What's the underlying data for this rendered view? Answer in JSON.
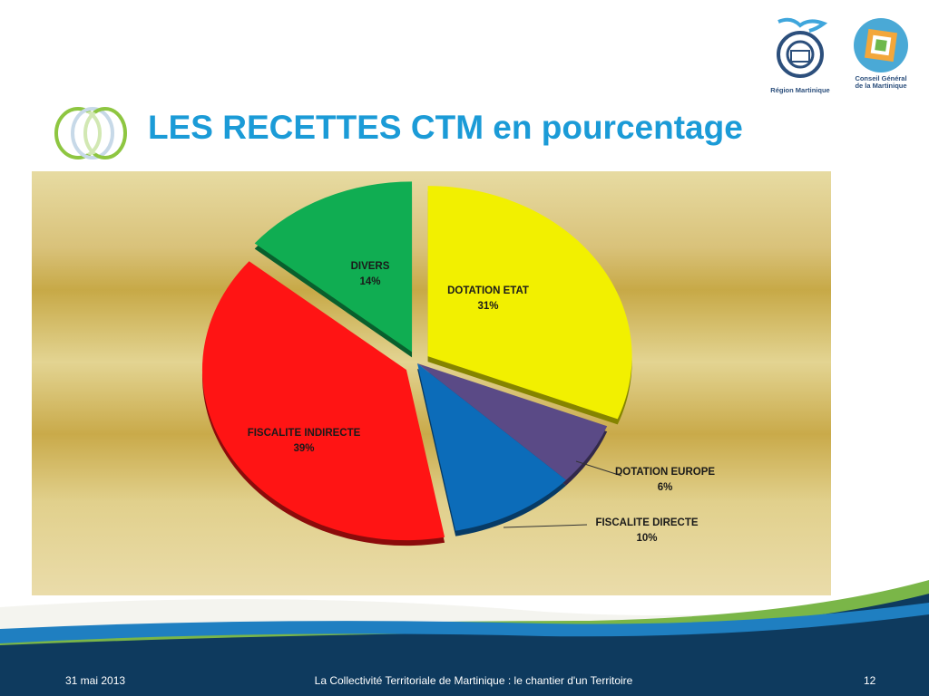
{
  "slide": {
    "title": "LES RECETTES CTM en pourcentage",
    "footer": {
      "date": "31 mai 2013",
      "caption": "La Collectivité Territoriale de Martinique : le chantier d'un Territoire",
      "page_number": "12"
    }
  },
  "logos": {
    "region_label": "Région Martinique",
    "cg_label_line1": "Conseil Général",
    "cg_label_line2": "de la Martinique"
  },
  "chart_data": {
    "type": "pie",
    "title": "",
    "slices": [
      {
        "label": "DOTATION ETAT",
        "percent_label": "31%",
        "value": 31,
        "color": "#f2f000",
        "exploded": true
      },
      {
        "label": "DOTATION EUROPE",
        "percent_label": "6%",
        "value": 6,
        "color": "#5a4a86",
        "exploded": false
      },
      {
        "label": "FISCALITE DIRECTE",
        "percent_label": "10%",
        "value": 10,
        "color": "#0c6cb9",
        "exploded": false
      },
      {
        "label": "FISCALITE INDIRECTE",
        "percent_label": "39%",
        "value": 39,
        "color": "#ff1414",
        "exploded": true
      },
      {
        "label": "DIVERS",
        "percent_label": "14%",
        "value": 14,
        "color": "#10ad52",
        "exploded": true
      }
    ]
  },
  "colors": {
    "title": "#1b9bd7",
    "footer_dark": "#0e3a5e",
    "footer_green": "#7ab648"
  }
}
